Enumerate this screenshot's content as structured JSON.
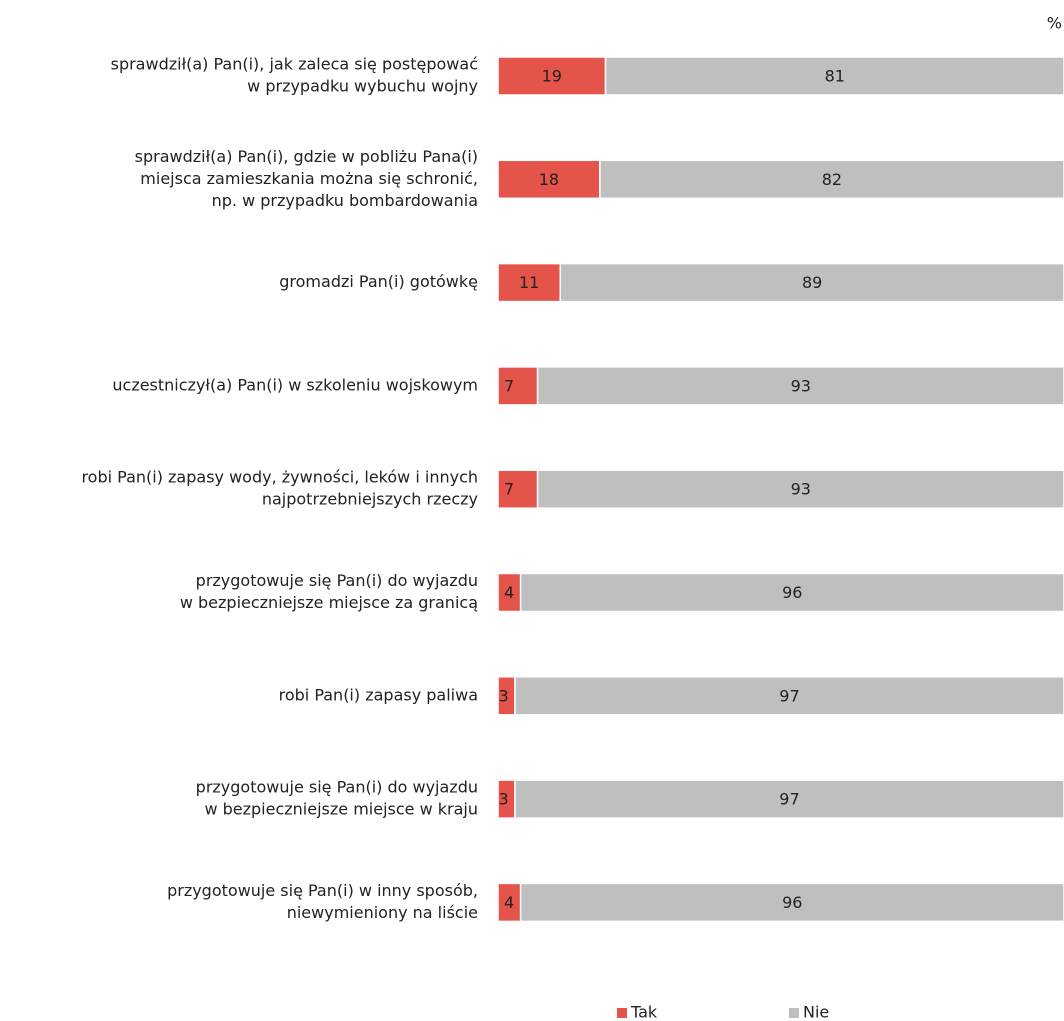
{
  "chart_data": {
    "type": "stacked-bar-horizontal",
    "unit": "%",
    "xlim": [
      0,
      100
    ],
    "categories": [
      [
        "sprawdził(a) Pan(i), jak zaleca się postępować",
        "w przypadku wybuchu wojny"
      ],
      [
        "sprawdził(a) Pan(i), gdzie w pobliżu Pana(i)",
        "miejsca zamieszkania można się schronić,",
        "np. w przypadku bombardowania"
      ],
      [
        "gromadzi Pan(i) gotówkę"
      ],
      [
        "uczestniczył(a) Pan(i) w szkoleniu wojskowym"
      ],
      [
        "robi Pan(i) zapasy wody, żywności, leków i innych",
        "najpotrzebniejszych rzeczy"
      ],
      [
        "przygotowuje się Pan(i) do wyjazdu",
        "w bezpieczniejsze miejsce za granicą"
      ],
      [
        "robi Pan(i) zapasy paliwa"
      ],
      [
        "przygotowuje się Pan(i) do wyjazdu",
        "w bezpieczniejsze miejsce w kraju"
      ],
      [
        "przygotowuje się Pan(i) w inny sposób,",
        "niewymieniony na liście"
      ]
    ],
    "series": [
      {
        "name": "Tak",
        "color": "#e4544a",
        "values": [
          19,
          18,
          11,
          7,
          7,
          4,
          3,
          3,
          4
        ]
      },
      {
        "name": "Nie",
        "color": "#bfbfbf",
        "values": [
          81,
          82,
          89,
          93,
          93,
          96,
          97,
          97,
          96
        ]
      }
    ]
  }
}
